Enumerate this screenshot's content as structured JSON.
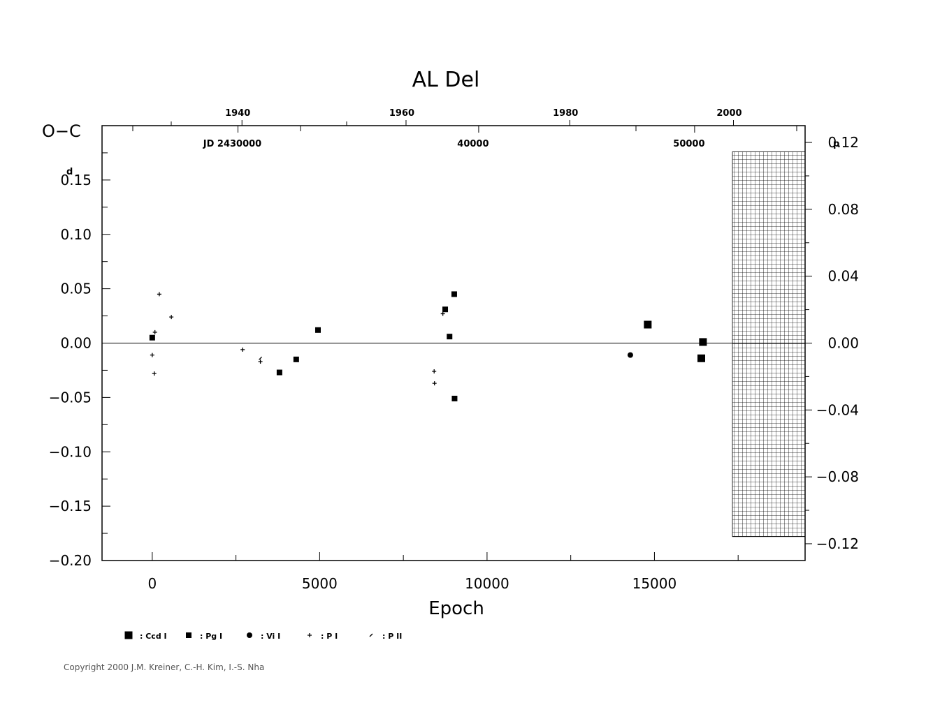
{
  "chart_data": {
    "type": "scatter",
    "title": "AL Del",
    "ylabel": "O−C",
    "xlabel": "Epoch",
    "xlim": [
      -1500,
      19500
    ],
    "ylim": [
      -0.2,
      0.2
    ],
    "y_tick_values": [
      0.15,
      0.1,
      0.05,
      0.0,
      -0.05,
      -0.1,
      -0.15,
      -0.2
    ],
    "y_tick_labels": [
      "0.15",
      "0.10",
      "0.05",
      "0.00",
      "−0.05",
      "−0.10",
      "−0.15",
      "−0.20"
    ],
    "y_unit_superscript": "d",
    "x_tick_values": [
      0,
      5000,
      10000,
      15000
    ],
    "x_tick_labels": [
      "0",
      "5000",
      "10000",
      "15000"
    ],
    "right_axis": {
      "unit_superscript": "p",
      "tick_values": [
        0.12,
        0.08,
        0.04,
        0.0,
        -0.04,
        -0.08,
        -0.12
      ],
      "tick_labels": [
        "0.12",
        "0.08",
        "0.04",
        "0.00",
        "−0.04",
        "−0.08",
        "−0.12"
      ],
      "scale_factor": 0.6502
    },
    "top_axis": {
      "years": [
        {
          "label": "1940",
          "epoch": 2680
        },
        {
          "label": "1960",
          "epoch": 7580
        },
        {
          "label": "1980",
          "epoch": 12470
        },
        {
          "label": "2000",
          "epoch": 17360
        }
      ],
      "jd": [
        {
          "label": "JD 2430000",
          "epoch": 2560
        },
        {
          "label": "40000",
          "epoch": 9750
        },
        {
          "label": "50000",
          "epoch": 16200
        }
      ]
    },
    "zero_line": true,
    "hatched_region": {
      "x_from": 17330,
      "x_to": 19500,
      "y_from": -0.178,
      "y_to": 0.176
    },
    "series": [
      {
        "name": "Ccd I",
        "marker": "square-large",
        "points": [
          [
            14800,
            0.017
          ],
          [
            16450,
            0.001
          ],
          [
            16400,
            -0.014
          ]
        ]
      },
      {
        "name": "Pg I",
        "marker": "square-small",
        "points": [
          [
            0,
            0.005
          ],
          [
            3800,
            -0.027
          ],
          [
            4300,
            -0.015
          ],
          [
            4950,
            0.012
          ],
          [
            8750,
            0.031
          ],
          [
            8880,
            0.006
          ],
          [
            9020,
            0.045
          ],
          [
            9030,
            -0.051
          ]
        ]
      },
      {
        "name": "Vi I",
        "marker": "circle",
        "points": [
          [
            14280,
            -0.011
          ]
        ]
      },
      {
        "name": "P I",
        "marker": "plus",
        "points": [
          [
            0,
            -0.011
          ],
          [
            60,
            -0.028
          ],
          [
            80,
            0.01
          ],
          [
            210,
            0.045
          ],
          [
            570,
            0.024
          ],
          [
            2700,
            -0.006
          ],
          [
            3230,
            -0.017
          ],
          [
            8420,
            -0.026
          ],
          [
            8430,
            -0.037
          ],
          [
            8680,
            0.027
          ]
        ]
      },
      {
        "name": "P II",
        "marker": "tick",
        "points": [
          [
            3230,
            -0.014
          ]
        ]
      }
    ]
  },
  "copyright": "Copyright 2000 J.M. Kreiner, C.-H. Kim, I.-S. Nha"
}
